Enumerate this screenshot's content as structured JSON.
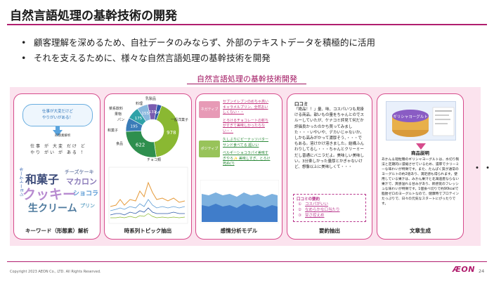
{
  "slide": {
    "title": "自然言語処理の基幹技術の開発",
    "bullets": [
      "顧客理解を深めるため、自社データのみならず、外部のテキストデータを積極的に活用",
      "それを支えるために、様々な自然言語処理の基幹技術を開発"
    ],
    "section_title": "自然言語処理の基幹技術開発"
  },
  "card_keyword": {
    "speech": "仕事が大変だけど\nやりがいがある！",
    "morph_label": "形態素解析",
    "morph_lines": [
      "仕 事　が　大 変　だ け　ど",
      "や り　が い　が　あ る　！"
    ],
    "cloud_words": [
      "和菓子",
      "クッキー",
      "生クリーム",
      "マカロン",
      "ショコラ",
      "チーズケーキ",
      "ショートケーキ",
      "プリン"
    ],
    "label": "キーワード（形態素）解析"
  },
  "card_topic": {
    "donut": {
      "values": [
        978,
        622,
        195,
        175,
        155,
        131,
        64
      ],
      "labels": [
        "一般洋菓子",
        "チョコ類",
        "食品",
        "和菓子",
        "パン",
        "果物",
        "菜系飲料"
      ],
      "colors": [
        "#8ab832",
        "#2e8f4e",
        "#3a7cb8",
        "#2fa2a8",
        "#8ab8de",
        "#7a5cb0",
        "#2e5aa8"
      ]
    },
    "outer_labels": [
      "乳製品",
      "料理",
      "菜系飲料",
      "果物",
      "パン",
      "和菓子",
      "食品",
      "チョコ類",
      "一般洋菓子"
    ],
    "label": "時系列トピック抽出"
  },
  "card_sentiment": {
    "pos_label": "ポジティブ",
    "neg_label": "ネガティブ",
    "neg_texts": [
      "セブンイレブンのめちゃ高いキャラメルプリン、全然おいしくない・・",
      "とろけるチョコレートの新ちがすぎて美味しかったらない・・"
    ],
    "pos_texts": [
      "久しぶりにピーナッツバターサンド食べてる 超いい",
      "ベルギーショコラパイ美味すぎやろ✨ 美味しすぎ、とろけ死ぬ(?)"
    ],
    "label": "感情分析モデル"
  },
  "card_summary": {
    "review_head": "口コミ",
    "review_body": "「絶品！！」量、味、コスパいつも見掛ける商品。甜いもの量をちゃんとのでスルーしていたが、ケナコミ評見て何だか評価良かったのかち買ってみました・・・いやいや、デカいじゃないか。しかも高みがかって濃厚そう、・・・でもある。溶けかけ溶きました。結構ふんわりしてるし・・・ちゃんとクリーミーだし普通にバニラだよ。美味しい美味しい。3分楽しかった量厚とかぎゃないけど、想像以上に美味しくて・・・",
    "summary_title": "口コミの要約",
    "summary_items": [
      {
        "num": "①",
        "text": "コスパがいい"
      },
      {
        "num": "②",
        "text": "なめらかな口当たり"
      },
      {
        "num": "③",
        "text": "甘さ控えめ"
      }
    ],
    "label": "要約抽出"
  },
  "card_text": {
    "product_name": "ギリシャヨーグルト",
    "desc_label": "商品説明",
    "desc": "あかん＆短粒種のギリシャヨーグルトは、水切り製法と定期的に濃縮させているため、濃厚でクリーミーな味わいが特徴です。また、たんぱく質が通常のヨーグルトの約2倍あり、満足感も得られます。使用している果汁は、みかん果汁と北海道産ならない果汁で、爽感溢れる甘みがあり、新感覚のフレッシュな味わいが特徴です。1個食べ切りで約90kcalで脂肪ゼロのヨーグルトなので、健康時でプロテインたっぷりで、日々の元気なスタートにぴったりです。",
    "label": "文章生成"
  },
  "footer": {
    "copyright": "Copyright 2023 AEON Co., LTD. All Rights Reserved.",
    "logo": "ÆON",
    "page": "24"
  },
  "ellipsis": "・・・"
}
